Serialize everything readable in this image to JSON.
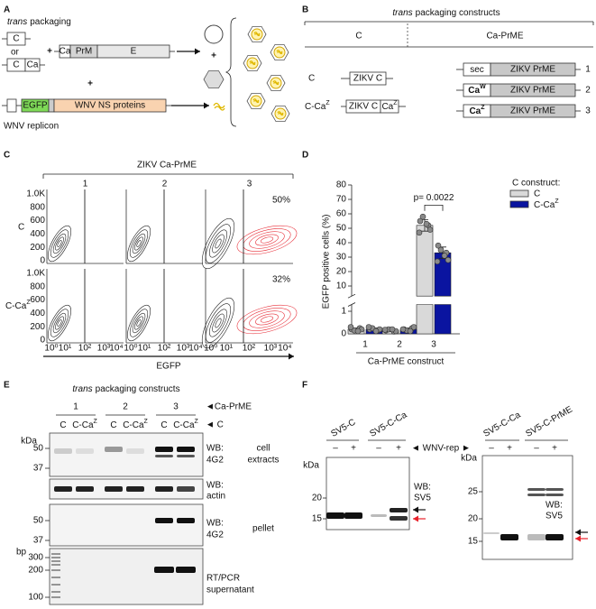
{
  "panel_a": {
    "label": "A",
    "trans": "trans",
    "packaging": "packaging",
    "c_box": "C",
    "or": "or",
    "c_box_2": "C",
    "ca_box": "Ca",
    "plus_1": "+",
    "ca": "Ca",
    "prm": "PrM",
    "e": "E",
    "plus_2": "+",
    "plus_3": "+",
    "egfp": "EGFP",
    "ns": "WNV NS proteins",
    "replicon": "WNV replicon"
  },
  "panel_b": {
    "label": "B",
    "trans": "trans",
    "header": "packaging constructs",
    "col_c": "C",
    "col_caprme": "Ca-PrME",
    "row_c": "C",
    "row_cca": "C-Ca",
    "row_cca_sup": "Z",
    "zikv_c_1": "ZIKV C",
    "zikv_c_2": "ZIKV C",
    "ca": "Ca",
    "ca_sup": "Z",
    "prme": [
      {
        "tag": "sec",
        "name": "ZIKV PrME",
        "num": "1"
      },
      {
        "tag": "Ca",
        "tag_sup": "W",
        "name": "ZIKV PrME",
        "num": "2"
      },
      {
        "tag": "Ca",
        "tag_sup": "Z",
        "name": "ZIKV PrME",
        "num": "3"
      }
    ]
  },
  "panel_c": {
    "label": "C",
    "title": "ZIKV Ca-PrME",
    "columns": [
      "1",
      "2",
      "3"
    ],
    "rows": [
      {
        "name": "C"
      },
      {
        "name": "C-Ca",
        "sup": "Z"
      }
    ],
    "percents": [
      "50%",
      "32%"
    ],
    "yticks": [
      "1.0K",
      "800",
      "600",
      "400",
      "200",
      "0"
    ],
    "xticks": [
      "10⁰",
      "10¹",
      "10²",
      "10³",
      "10⁴"
    ],
    "xlabel": "EGFP"
  },
  "panel_d": {
    "label": "D",
    "type": "bar",
    "ylabel": "EGFP positive cells (%)",
    "xlabel": "Ca-PrME construct",
    "legend_title": "C construct:",
    "annotation": "p= 0.0022",
    "categories": [
      "1",
      "2",
      "3"
    ],
    "ylim": [
      0,
      80
    ],
    "ybreak": [
      1.3,
      3
    ],
    "yticks": [
      0,
      1,
      10,
      20,
      30,
      40,
      50,
      60,
      70,
      80
    ],
    "series": [
      {
        "name": "C",
        "color": "#d9d9d9",
        "values": [
          0.2,
          0.15,
          52
        ],
        "errors": [
          0.06,
          0.05,
          4
        ],
        "points": [
          [
            0.2,
            0.25,
            0.15,
            0.2,
            0.3,
            0.12
          ],
          [
            0.15,
            0.1,
            0.2,
            0.12,
            0.18,
            0.2
          ],
          [
            55,
            52,
            58,
            49,
            47,
            53
          ]
        ]
      },
      {
        "name": "C-Ca",
        "name_sup": "Z",
        "color": "#0a14a0",
        "values": [
          0.2,
          0.2,
          33
        ],
        "errors": [
          0.06,
          0.06,
          4
        ],
        "points": [
          [
            0.2,
            0.15,
            0.25,
            0.2,
            0.3,
            0.12
          ],
          [
            0.2,
            0.25,
            0.15,
            0.3,
            0.2,
            0.12
          ],
          [
            38,
            33,
            35,
            28,
            27,
            31
          ]
        ]
      }
    ]
  },
  "panel_e": {
    "label": "E",
    "trans": "trans",
    "header": "packaging constructs",
    "groups": [
      "1",
      "2",
      "3"
    ],
    "caprme": "◄Ca-PrME",
    "lanes": [
      {
        "name": "C"
      },
      {
        "name": "C-Ca",
        "sup": "Z"
      },
      {
        "name": "C"
      },
      {
        "name": "C-Ca",
        "sup": "Z"
      },
      {
        "name": "C"
      },
      {
        "name": "C-Ca",
        "sup": "Z"
      }
    ],
    "c_marker": "◄ C",
    "kda": "kDa",
    "blot1_ticks": [
      "50",
      "37"
    ],
    "blot1_wb": "WB:",
    "blot1_ab": "4G2",
    "extracts_1": "cell",
    "extracts_2": "extracts",
    "blot2_wb": "WB:",
    "blot2_ab": "actin",
    "blot3_ticks": [
      "50",
      "37"
    ],
    "blot3_wb": "WB:",
    "blot3_ab": "4G2",
    "pellet": "pellet",
    "bp": "bp",
    "gel_ticks": [
      "300",
      "200",
      "100"
    ],
    "rt": "RT/PCR",
    "supernatant": "supernatant"
  },
  "panel_f": {
    "label": "F",
    "left": {
      "lanes": [
        "SV5-C",
        "SV5-C-Ca"
      ],
      "signs": [
        "–",
        "+",
        "–",
        "+"
      ],
      "wnv": "◄ WNV-rep ►",
      "kda": "kDa",
      "ticks": [
        "20",
        "15"
      ],
      "wb": "WB:",
      "ab": "SV5"
    },
    "right": {
      "lanes": [
        "SV5-C-Ca",
        "SV5-C-PrME"
      ],
      "signs": [
        "–",
        "+",
        "–",
        "+"
      ],
      "kda": "kDa",
      "ticks": [
        "25",
        "20",
        "15"
      ],
      "wb": "WB:",
      "ab": "SV5"
    }
  }
}
